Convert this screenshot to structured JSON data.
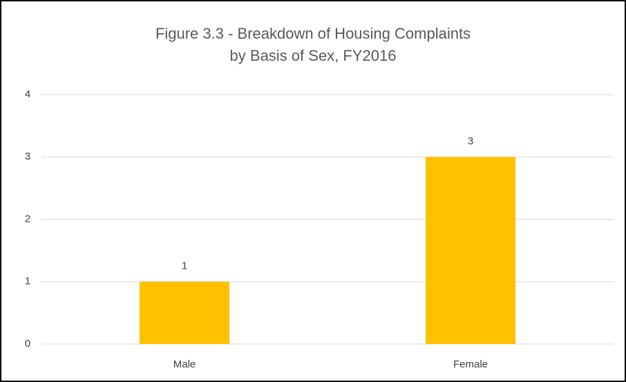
{
  "chart_data": {
    "type": "bar",
    "title": [
      "Figure 3.3 - Breakdown of Housing Complaints",
      "by Basis of Sex, FY2016"
    ],
    "categories": [
      "Male",
      "Female"
    ],
    "values": [
      1,
      3
    ],
    "color": "#ffc000",
    "ylim": [
      0,
      4
    ],
    "yticks": [
      0,
      1,
      2,
      3,
      4
    ],
    "grid": true,
    "data_labels": true
  }
}
